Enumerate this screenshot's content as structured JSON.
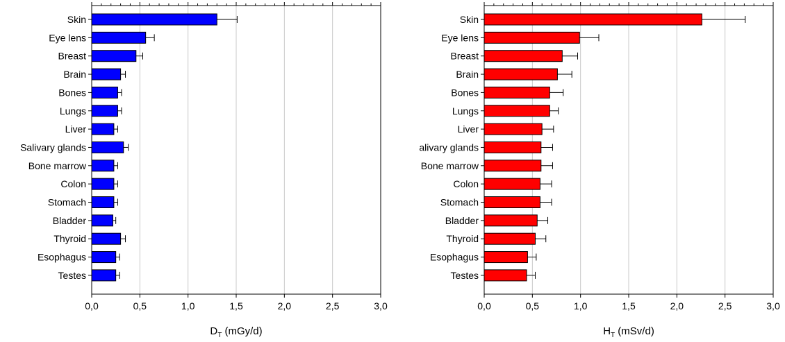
{
  "chart_data": [
    {
      "type": "bar",
      "orientation": "horizontal",
      "categories": [
        "Skin",
        "Eye lens",
        "Breast",
        "Brain",
        "Bones",
        "Lungs",
        "Liver",
        "Salivary glands",
        "Bone marrow",
        "Colon",
        "Stomach",
        "Bladder",
        "Thyroid",
        "Esophagus",
        "Testes"
      ],
      "values": [
        1.3,
        0.56,
        0.46,
        0.3,
        0.27,
        0.27,
        0.23,
        0.33,
        0.23,
        0.23,
        0.23,
        0.22,
        0.3,
        0.25,
        0.25
      ],
      "errors": [
        0.21,
        0.09,
        0.07,
        0.05,
        0.04,
        0.04,
        0.04,
        0.05,
        0.04,
        0.04,
        0.04,
        0.03,
        0.05,
        0.04,
        0.04
      ],
      "xlim": [
        0,
        3.0
      ],
      "xticks": [
        "0,0",
        "0,5",
        "1,0",
        "1,5",
        "2,0",
        "2,5",
        "3,0"
      ],
      "xlabel_main": "D",
      "xlabel_sub": "T",
      "xlabel_rest": " (mGy/d)",
      "ylabel": "",
      "grid": true,
      "color": "#0000ff"
    },
    {
      "type": "bar",
      "orientation": "horizontal",
      "categories": [
        "Skin",
        "Eye lens",
        "Breast",
        "Brain",
        "Bones",
        "Lungs",
        "Liver",
        "alivary glands",
        "Bone marrow",
        "Colon",
        "Stomach",
        "Bladder",
        "Thyroid",
        "Esophagus",
        "Testes"
      ],
      "values": [
        2.26,
        0.99,
        0.81,
        0.76,
        0.68,
        0.68,
        0.6,
        0.59,
        0.59,
        0.58,
        0.58,
        0.55,
        0.53,
        0.45,
        0.44
      ],
      "errors": [
        0.45,
        0.2,
        0.16,
        0.15,
        0.14,
        0.09,
        0.12,
        0.12,
        0.12,
        0.12,
        0.12,
        0.11,
        0.11,
        0.09,
        0.09
      ],
      "xlim": [
        0,
        3.0
      ],
      "xticks": [
        "0,0",
        "0,5",
        "1,0",
        "1,5",
        "2,0",
        "2,5",
        "3,0"
      ],
      "xlabel_main": "H",
      "xlabel_sub": "T",
      "xlabel_rest": " (mSv/d)",
      "ylabel": "",
      "grid": true,
      "color": "#ff0000"
    }
  ]
}
